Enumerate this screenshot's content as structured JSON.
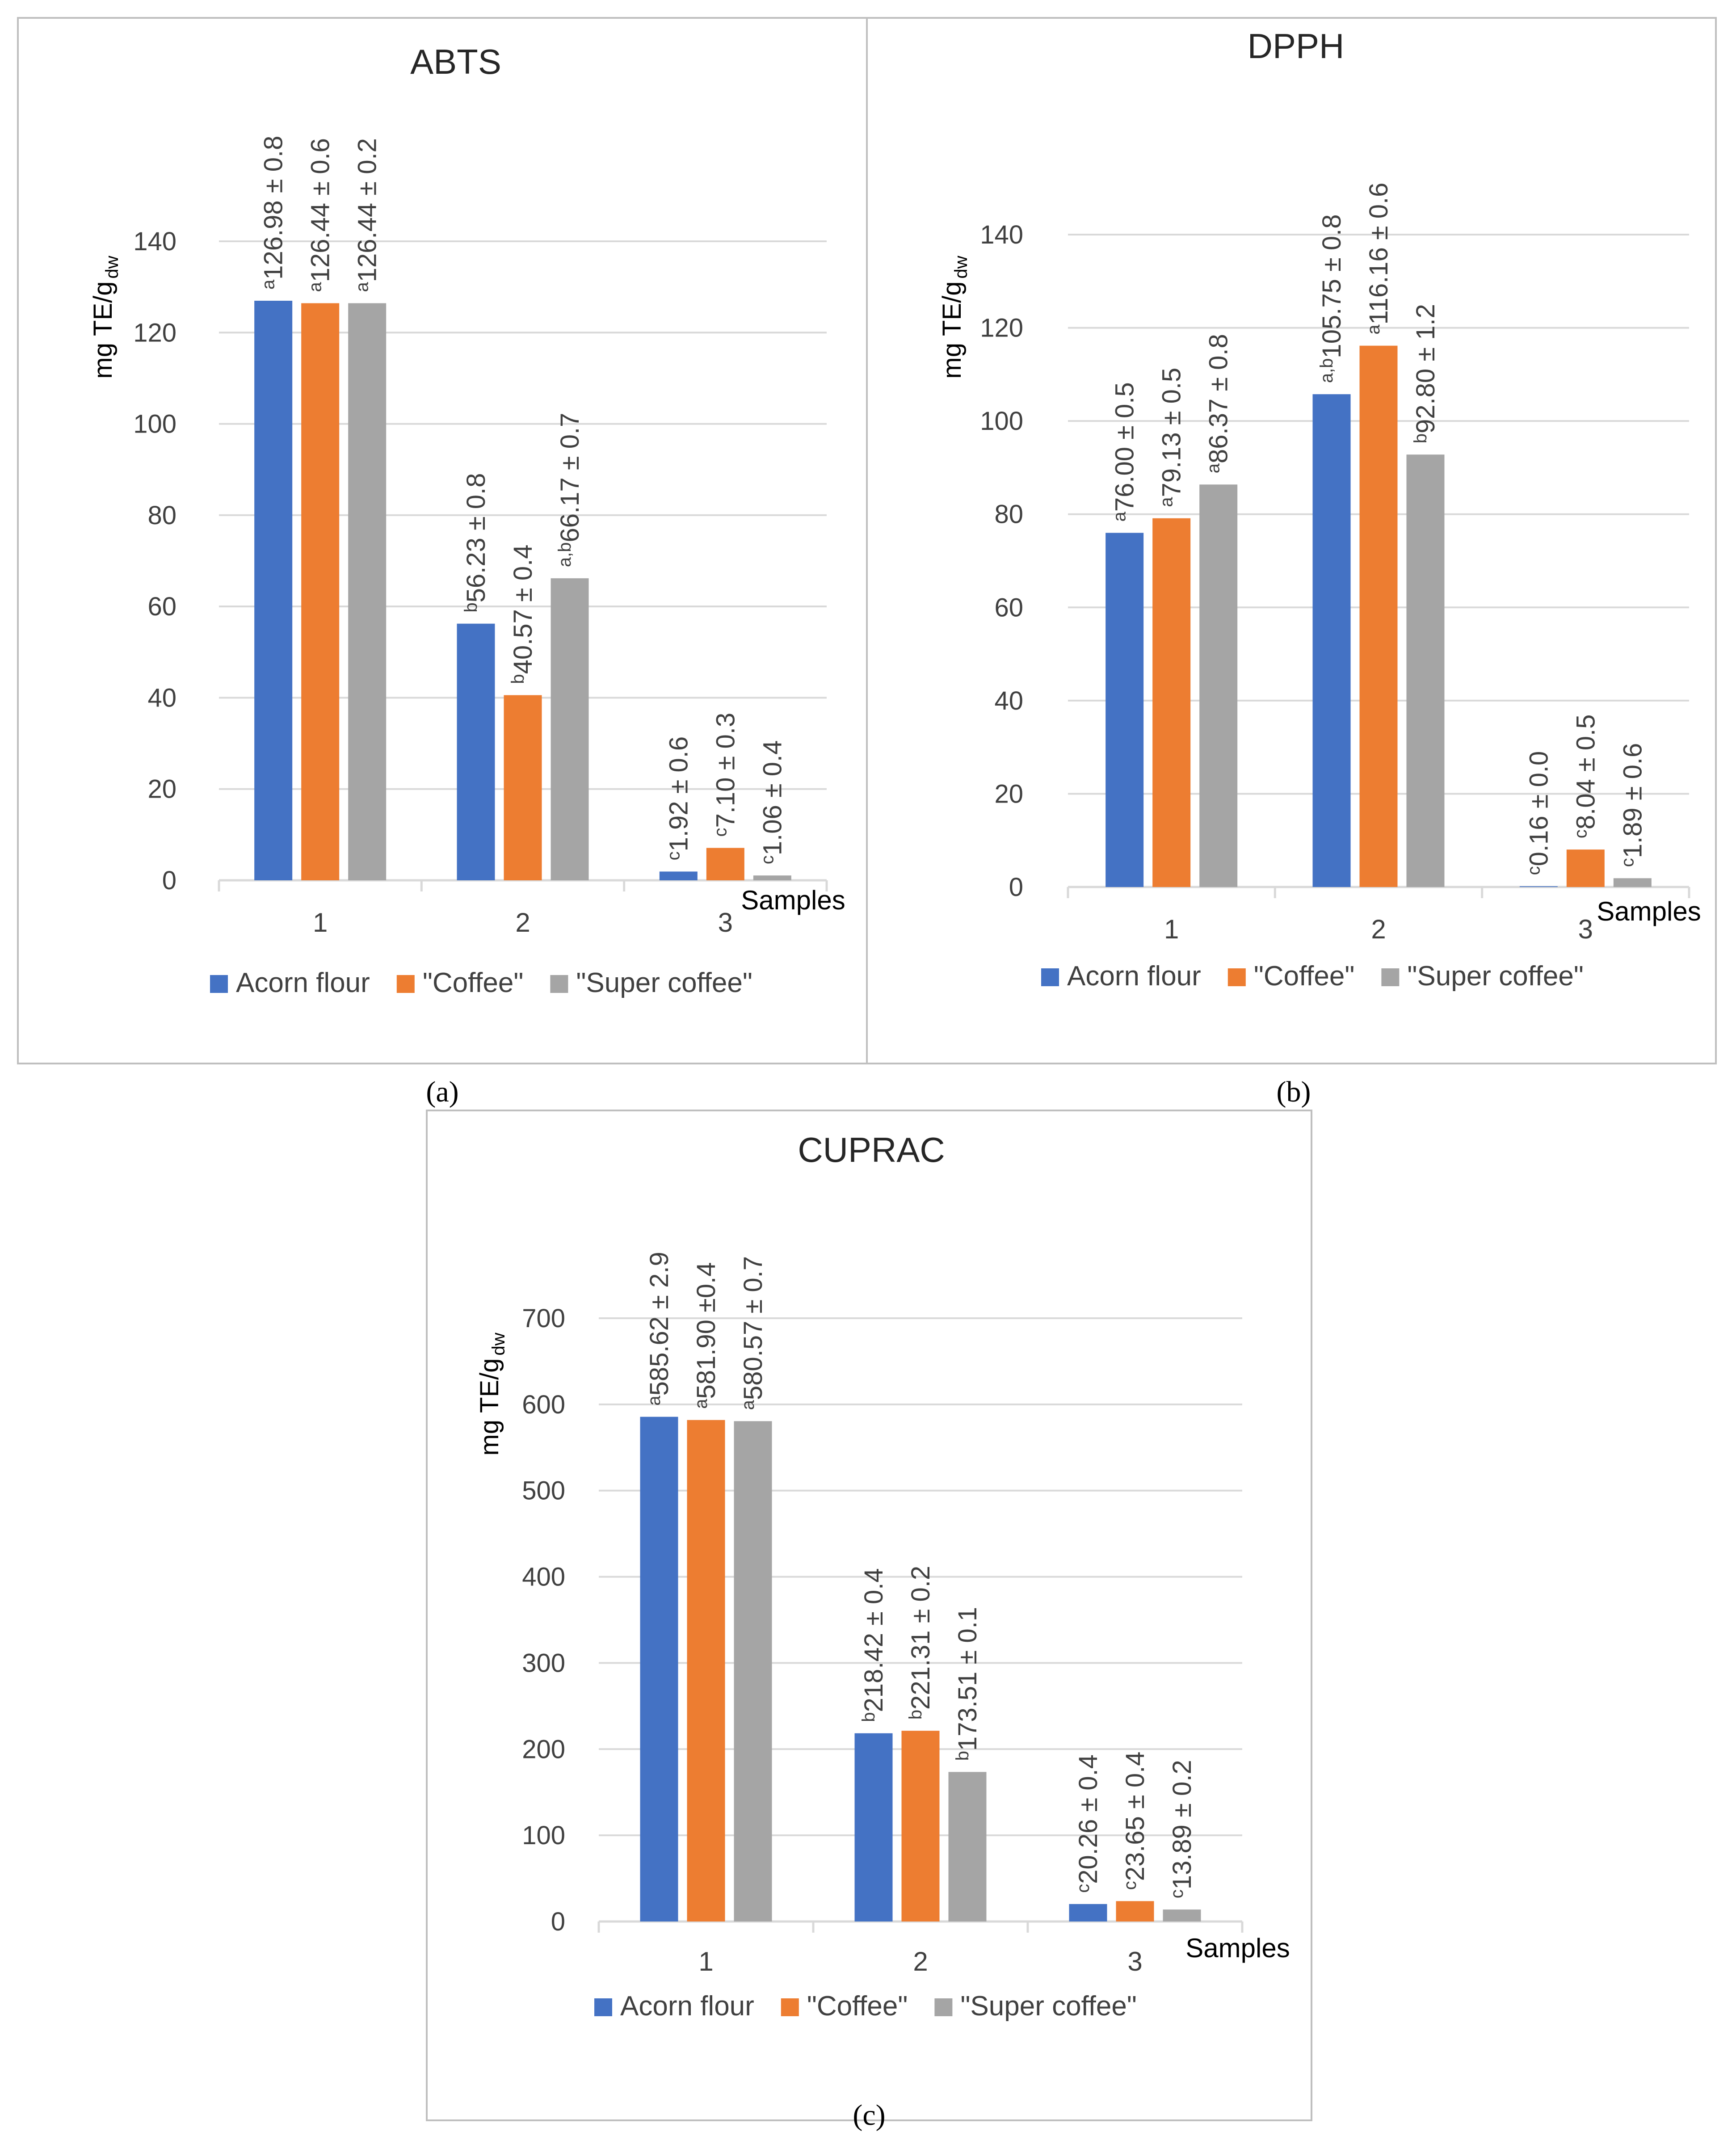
{
  "panel_labels": [
    "(a)",
    "(b)",
    "(c)"
  ],
  "colors": {
    "Acorn flour": "#4472C4",
    "\"Coffee\"": "#ED7D31",
    "\"Super coffee\"": "#A5A5A5",
    "grid": "#D9D9D9",
    "frame": "#BFBFBF",
    "text": "#262626"
  },
  "chart_data": [
    {
      "type": "bar",
      "title": "ABTS",
      "ylabel_main": "mg TE/g",
      "ylabel_sub": "dw",
      "xlabel": "Samples",
      "categories": [
        "1",
        "2",
        "3"
      ],
      "yticks": [
        "0",
        "20",
        "40",
        "60",
        "80",
        "100",
        "120",
        "140"
      ],
      "ylim": [
        0,
        140
      ],
      "legend_position": "bottom",
      "grid": true,
      "series": [
        {
          "name": "Acorn flour",
          "values": [
            126.98,
            56.23,
            1.92
          ],
          "labels": [
            "126.98 ± 0.8",
            "56.23 ± 0.8",
            "1.92 ± 0.6"
          ],
          "sups": [
            "a",
            "b",
            "c"
          ]
        },
        {
          "name": "\"Coffee\"",
          "values": [
            126.44,
            40.57,
            7.1
          ],
          "labels": [
            "126.44 ± 0.6",
            "40.57 ± 0.4",
            "7.10 ± 0.3"
          ],
          "sups": [
            "a",
            "b",
            "c"
          ]
        },
        {
          "name": "\"Super coffee\"",
          "values": [
            126.44,
            66.17,
            1.06
          ],
          "labels": [
            "126.44 ± 0.2",
            "66.17 ± 0.7",
            "1.06 ± 0.4"
          ],
          "sups": [
            "a",
            "a,b",
            "c"
          ]
        }
      ]
    },
    {
      "type": "bar",
      "title": "DPPH",
      "ylabel_main": "mg TE/g",
      "ylabel_sub": "dw",
      "xlabel": "Samples",
      "categories": [
        "1",
        "2",
        "3"
      ],
      "yticks": [
        "0",
        "20",
        "40",
        "60",
        "80",
        "100",
        "120",
        "140"
      ],
      "ylim": [
        0,
        140
      ],
      "legend_position": "bottom",
      "grid": true,
      "series": [
        {
          "name": "Acorn flour",
          "values": [
            76.0,
            105.75,
            0.16
          ],
          "labels": [
            "76.00 ± 0.5",
            "105.75 ± 0.8",
            "0.16 ± 0.0"
          ],
          "sups": [
            "a",
            "a,b",
            "c"
          ]
        },
        {
          "name": "\"Coffee\"",
          "values": [
            79.13,
            116.16,
            8.04
          ],
          "labels": [
            "79.13 ± 0.5",
            "116.16 ± 0.6",
            "8.04 ± 0.5"
          ],
          "sups": [
            "a",
            "a",
            "c"
          ]
        },
        {
          "name": "\"Super coffee\"",
          "values": [
            86.37,
            92.8,
            1.89
          ],
          "labels": [
            "86.37 ± 0.8",
            "92.80 ± 1.2",
            "1.89 ± 0.6"
          ],
          "sups": [
            "a",
            "b",
            "c"
          ]
        }
      ]
    },
    {
      "type": "bar",
      "title": "CUPRAC",
      "ylabel_main": "mg TE/g",
      "ylabel_sub": "dw",
      "xlabel": "Samples",
      "categories": [
        "1",
        "2",
        "3"
      ],
      "yticks": [
        "0",
        "100",
        "200",
        "300",
        "400",
        "500",
        "600",
        "700"
      ],
      "ylim": [
        0,
        700
      ],
      "legend_position": "bottom",
      "grid": true,
      "series": [
        {
          "name": "Acorn flour",
          "values": [
            585.62,
            218.42,
            20.26
          ],
          "labels": [
            "585.62 ± 2.9",
            "218.42 ± 0.4",
            "20.26 ± 0.4"
          ],
          "sups": [
            "a",
            "b",
            "c"
          ]
        },
        {
          "name": "\"Coffee\"",
          "values": [
            581.9,
            221.31,
            23.65
          ],
          "labels": [
            "581.90 ±0.4",
            "221.31 ± 0.2",
            "23.65 ± 0.4"
          ],
          "sups": [
            "a",
            "b",
            "c"
          ]
        },
        {
          "name": "\"Super coffee\"",
          "values": [
            580.57,
            173.51,
            13.89
          ],
          "labels": [
            "580.57 ± 0.7",
            "173.51 ± 0.1",
            "13.89 ± 0.2"
          ],
          "sups": [
            "a",
            "b",
            "c"
          ]
        }
      ]
    }
  ]
}
